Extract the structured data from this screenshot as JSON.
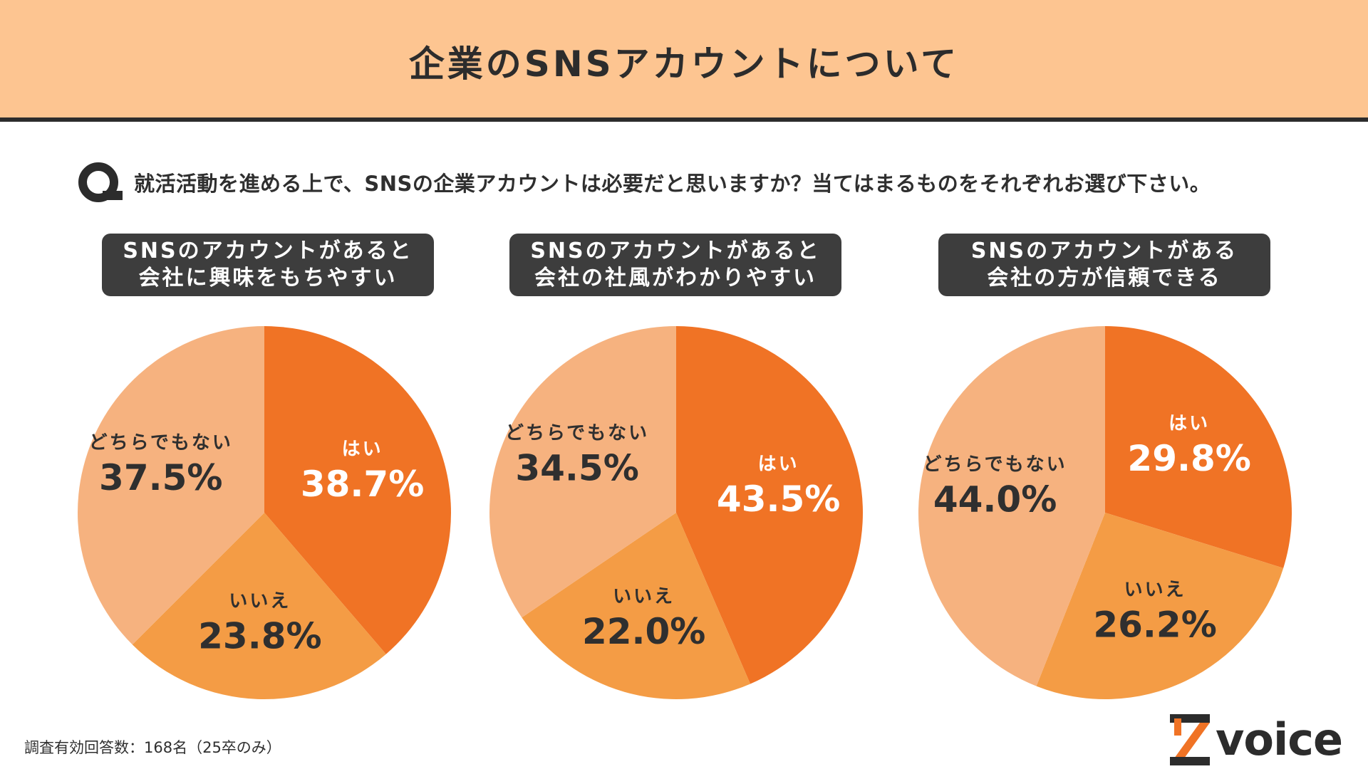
{
  "title": "企業のSNSアカウントについて",
  "question": "就活活動を進める上で、SNSの企業アカウントは必要だと思いますか？当てはまるものをそれぞれお選び下さい。",
  "footnote": "調査有効回答数：168名（25卒のみ）",
  "logo_text": "voice",
  "icons": {
    "question": "q-badge-icon",
    "logo": "z-logo-mark"
  },
  "colors": {
    "header_bg": "#fdc591",
    "label_bg": "#3d3d3d",
    "yes": "#f07325",
    "no": "#f49c45",
    "neither": "#f6b27f"
  },
  "chart_data": [
    {
      "type": "pie",
      "title_lines": [
        "SNSのアカウントがあると",
        "会社に興味をもちやすい"
      ],
      "slices": [
        {
          "label": "はい",
          "value": 38.7,
          "display": "38.7%"
        },
        {
          "label": "いいえ",
          "value": 23.8,
          "display": "23.8%"
        },
        {
          "label": "どちらでもない",
          "value": 37.5,
          "display": "37.5%"
        }
      ]
    },
    {
      "type": "pie",
      "title_lines": [
        "SNSのアカウントがあると",
        "会社の社風がわかりやすい"
      ],
      "slices": [
        {
          "label": "はい",
          "value": 43.5,
          "display": "43.5%"
        },
        {
          "label": "いいえ",
          "value": 22.0,
          "display": "22.0%"
        },
        {
          "label": "どちらでもない",
          "value": 34.5,
          "display": "34.5%"
        }
      ]
    },
    {
      "type": "pie",
      "title_lines": [
        "SNSのアカウントがある",
        "会社の方が信頼できる"
      ],
      "slices": [
        {
          "label": "はい",
          "value": 29.8,
          "display": "29.8%"
        },
        {
          "label": "いいえ",
          "value": 26.2,
          "display": "26.2%"
        },
        {
          "label": "どちらでもない",
          "value": 44.0,
          "display": "44.0%"
        }
      ]
    }
  ]
}
